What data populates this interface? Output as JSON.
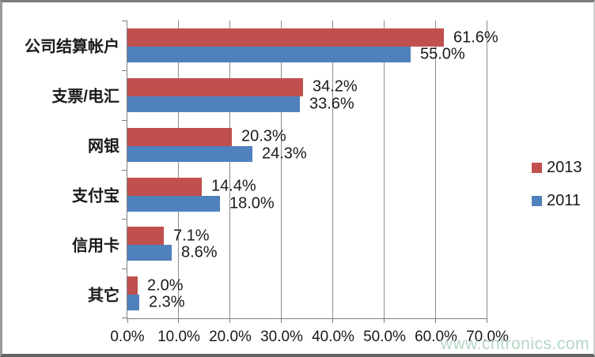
{
  "watermark": {
    "text": "www.cntronics.com",
    "color": "#b5d6c2"
  },
  "colors": {
    "grid": "#8c8c8c",
    "axis": "#7f7f7f",
    "text": "#1a1a1a",
    "series_2013": "#c0504d",
    "series_2011": "#4f81bd"
  },
  "chart_data": {
    "type": "bar",
    "orientation": "horizontal",
    "categories": [
      "公司结算帐户",
      "支票/电汇",
      "网银",
      "支付宝",
      "信用卡",
      "其它"
    ],
    "series": [
      {
        "name": "2013",
        "color": "#c0504d",
        "values": [
          61.6,
          34.2,
          20.3,
          14.4,
          7.1,
          2.0
        ],
        "labels": [
          "61.6%",
          "34.2%",
          "20.3%",
          "14.4%",
          "7.1%",
          "2.0%"
        ]
      },
      {
        "name": "2011",
        "color": "#4f81bd",
        "values": [
          55.0,
          33.6,
          24.3,
          18.0,
          8.6,
          2.3
        ],
        "labels": [
          "55.0%",
          "33.6%",
          "24.3%",
          "18.0%",
          "8.6%",
          "2.3%"
        ]
      }
    ],
    "x_ticks": [
      "0.0%",
      "10.0%",
      "20.0%",
      "30.0%",
      "40.0%",
      "50.0%",
      "60.0%",
      "70.0%"
    ],
    "xlim": [
      0,
      70
    ],
    "grid": true,
    "legend_position": "right"
  }
}
